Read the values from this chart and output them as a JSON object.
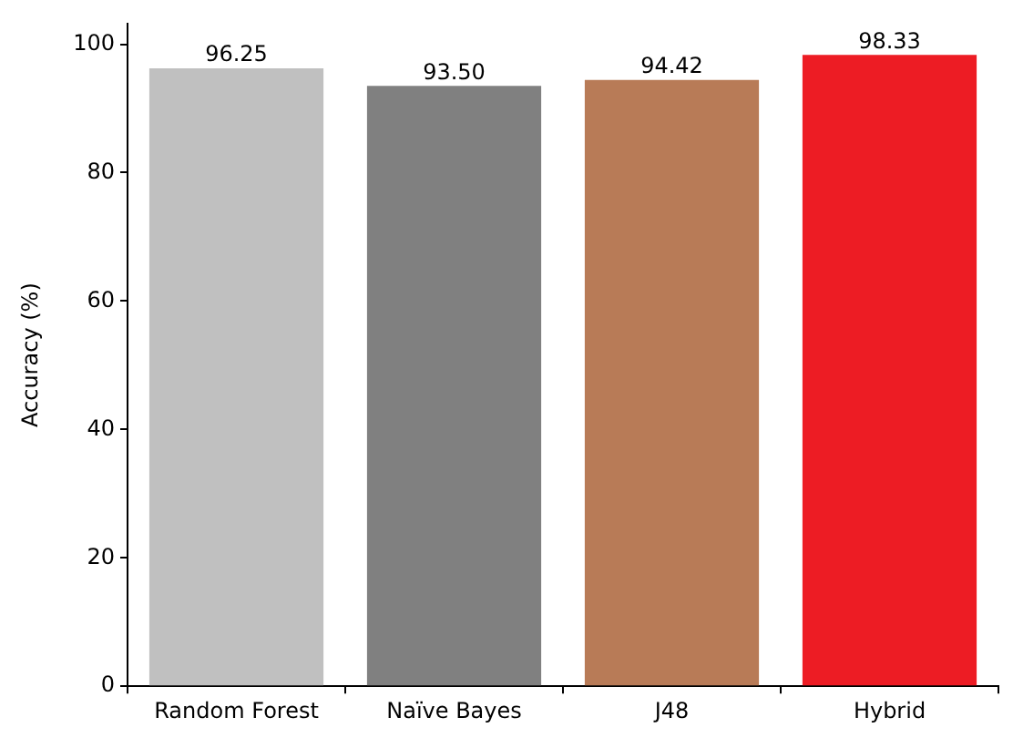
{
  "chart_data": {
    "type": "bar",
    "ylabel": "Accuracy (%)",
    "categories": [
      "Random Forest",
      "Naïve Bayes",
      "J48",
      "Hybrid"
    ],
    "values": [
      96.25,
      93.5,
      94.42,
      98.33
    ],
    "value_labels": [
      "96.25",
      "93.50",
      "94.42",
      "98.33"
    ],
    "colors": [
      "#c0c0c0",
      "#808080",
      "#b87b57",
      "#ed1c24"
    ],
    "ylim": [
      0,
      103.2
    ],
    "yticks": [
      0,
      20,
      40,
      60,
      80,
      100
    ],
    "grid": false,
    "legend": false
  }
}
